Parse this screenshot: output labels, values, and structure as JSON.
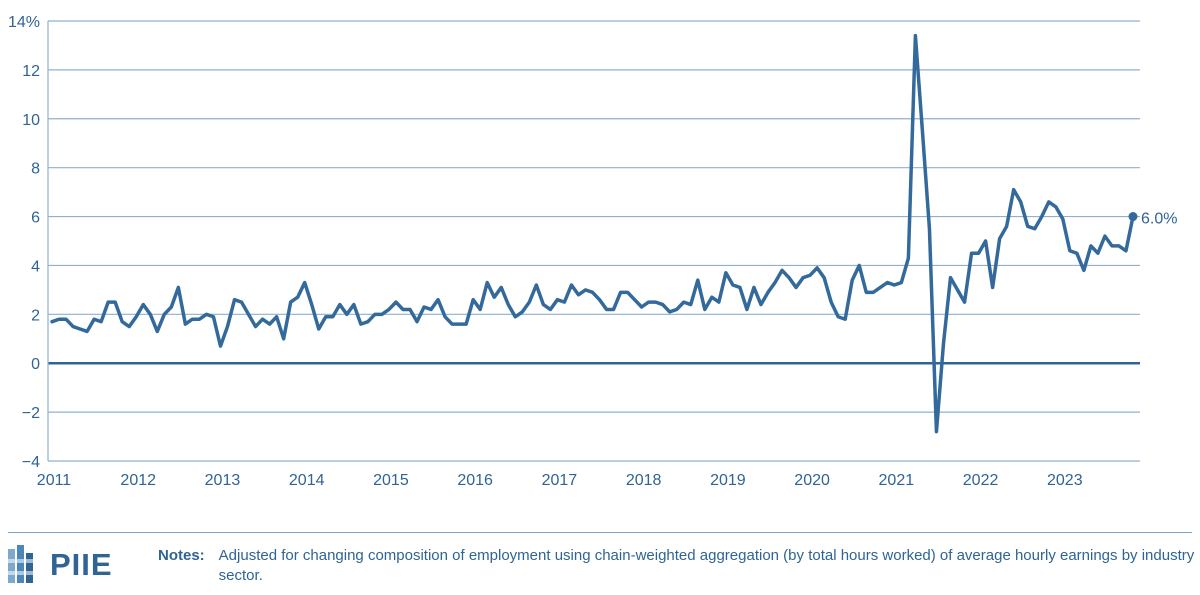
{
  "chart_data": {
    "type": "line",
    "ylabel": "",
    "xlabel": "",
    "ylim": [
      -4,
      14
    ],
    "y_ticks": [
      -4,
      -2,
      0,
      2,
      4,
      6,
      8,
      10,
      12,
      14
    ],
    "y_tick_labels": [
      "−4",
      "−2",
      "0",
      "2",
      "4",
      "6",
      "8",
      "10",
      "12",
      "14%"
    ],
    "x_tick_labels": [
      "2011",
      "2012",
      "2013",
      "2014",
      "2015",
      "2016",
      "2017",
      "2018",
      "2019",
      "2020",
      "2021",
      "2022",
      "2023"
    ],
    "grid": true,
    "end_label": "6.0%",
    "colors": {
      "line": "#336a9b",
      "grid": "#8fb1cf",
      "zero": "#2f6494"
    },
    "series": [
      {
        "values": [
          1.7,
          1.8,
          1.8,
          1.5,
          1.4,
          1.3,
          1.8,
          1.7,
          2.5,
          2.5,
          1.7,
          1.5,
          1.9,
          2.4,
          2.0,
          1.3,
          2.0,
          2.3,
          3.1,
          1.6,
          1.8,
          1.8,
          2.0,
          1.9,
          0.7,
          1.5,
          2.6,
          2.5,
          2.0,
          1.5,
          1.8,
          1.6,
          1.9,
          1.0,
          2.5,
          2.7,
          3.3,
          2.4,
          1.4,
          1.9,
          1.9,
          2.4,
          2.0,
          2.4,
          1.6,
          1.7,
          2.0,
          2.0,
          2.2,
          2.5,
          2.2,
          2.2,
          1.7,
          2.3,
          2.2,
          2.6,
          1.9,
          1.6,
          1.6,
          1.6,
          2.6,
          2.2,
          3.3,
          2.7,
          3.1,
          2.4,
          1.9,
          2.1,
          2.5,
          3.2,
          2.4,
          2.2,
          2.6,
          2.5,
          3.2,
          2.8,
          3.0,
          2.9,
          2.6,
          2.2,
          2.2,
          2.9,
          2.9,
          2.6,
          2.3,
          2.5,
          2.5,
          2.4,
          2.1,
          2.2,
          2.5,
          2.4,
          3.4,
          2.2,
          2.7,
          2.5,
          3.7,
          3.2,
          3.1,
          2.2,
          3.1,
          2.4,
          2.9,
          3.3,
          3.8,
          3.5,
          3.1,
          3.5,
          3.6,
          3.9,
          3.5,
          2.5,
          1.9,
          1.8,
          3.4,
          4.0,
          2.9,
          2.9,
          3.1,
          3.3,
          3.2,
          3.3,
          4.3,
          13.4,
          9.5,
          5.5,
          -2.8,
          0.8,
          3.5,
          3.0,
          2.5,
          4.5,
          4.5,
          5.0,
          3.1,
          5.1,
          5.6,
          7.1,
          6.6,
          5.6,
          5.5,
          6.0,
          6.6,
          6.4,
          5.9,
          4.6,
          4.5,
          3.8,
          4.8,
          4.5,
          5.2,
          4.8,
          4.8,
          4.6,
          6.0
        ]
      }
    ]
  },
  "footer": {
    "logo_text": "PIIE",
    "notes_label": "Notes:",
    "notes_text": "Adjusted for changing composition of employment using chain-weighted aggregation (by total hours worked) of average hourly earnings by industry sector."
  }
}
